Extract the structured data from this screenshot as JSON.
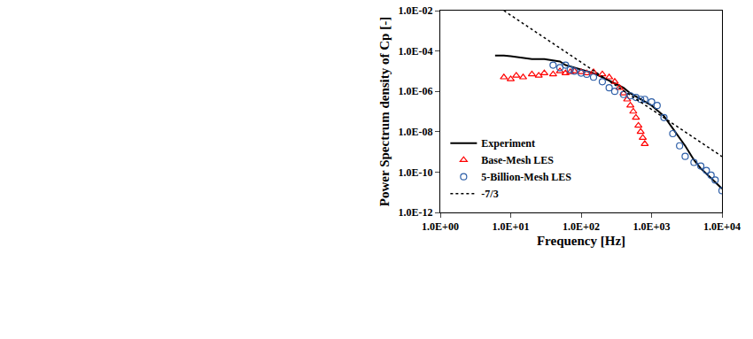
{
  "chart_data": {
    "type": "line",
    "x_label": "Frequency [Hz]",
    "y_label": "Power Spectrum density of Cp [-]",
    "log": true,
    "grid": false,
    "legend": "lower left",
    "xlim": [
      1,
      10000
    ],
    "ylim": [
      1e-12,
      0.01
    ],
    "xticks": [
      {
        "value": 1,
        "label": "1.0E+00"
      },
      {
        "value": 10,
        "label": "1.0E+01"
      },
      {
        "value": 100,
        "label": "1.0E+02"
      },
      {
        "value": 1000,
        "label": "1.0E+03"
      },
      {
        "value": 10000,
        "label": "1.0E+04"
      }
    ],
    "yticks": [
      {
        "value": 1e-12,
        "label": "1.0E-12"
      },
      {
        "value": 1e-10,
        "label": "1.0E-10"
      },
      {
        "value": 1e-08,
        "label": "1.0E-08"
      },
      {
        "value": 1e-06,
        "label": "1.0E-06"
      },
      {
        "value": 0.0001,
        "label": "1.0E-04"
      },
      {
        "value": 0.01,
        "label": "1.0E-02"
      }
    ],
    "series": [
      {
        "name": "Experiment",
        "type": "line",
        "color": "#000000",
        "line_style": "solid",
        "x": [
          6,
          8,
          10,
          15,
          20,
          30,
          40,
          50,
          60,
          80,
          100,
          150,
          200,
          300,
          400,
          500,
          700,
          1000,
          1500,
          2000,
          3000,
          4000,
          5000,
          7000,
          10000
        ],
        "values": [
          6e-05,
          6e-05,
          5.5e-05,
          4.5e-05,
          4e-05,
          4e-05,
          3.5e-05,
          3e-05,
          2e-05,
          1.5e-05,
          1.2e-05,
          8e-06,
          5e-06,
          2.5e-06,
          1.5e-06,
          8e-07,
          4e-07,
          2e-07,
          6e-08,
          1.5e-08,
          2e-09,
          4e-10,
          1.5e-10,
          5e-11,
          1.5e-11
        ]
      },
      {
        "name": "Base-Mesh LES",
        "type": "scatter",
        "color": "#ff0000",
        "marker": "triangle-open",
        "x": [
          8,
          10,
          12,
          15,
          20,
          25,
          30,
          40,
          50,
          60,
          70,
          80,
          100,
          120,
          150,
          200,
          250,
          300,
          350,
          400,
          450,
          500,
          550,
          600,
          650,
          700,
          750,
          800
        ],
        "values": [
          5e-06,
          4e-06,
          6e-06,
          5e-06,
          7e-06,
          6e-06,
          8e-06,
          7e-06,
          1e-05,
          8e-06,
          9e-06,
          1e-05,
          9e-06,
          8e-06,
          9e-06,
          7e-06,
          5e-06,
          3e-06,
          1.5e-06,
          8e-07,
          4e-07,
          2e-07,
          1e-07,
          5e-08,
          2e-08,
          1e-08,
          5e-09,
          2.5e-09
        ]
      },
      {
        "name": "5-Billion-Mesh LES",
        "type": "scatter",
        "color": "#2e5fa8",
        "marker": "circle-open",
        "x": [
          40,
          50,
          60,
          70,
          80,
          100,
          120,
          150,
          200,
          250,
          300,
          400,
          500,
          600,
          700,
          800,
          1000,
          1200,
          1500,
          2000,
          2500,
          3000,
          4000,
          5000,
          6000,
          7000,
          8000,
          10000
        ],
        "values": [
          2e-05,
          1.5e-05,
          2e-05,
          1.2e-05,
          1e-05,
          8e-06,
          7e-06,
          5e-06,
          3e-06,
          1.5e-06,
          1e-06,
          7e-07,
          6e-07,
          5e-07,
          4e-07,
          4e-07,
          3e-07,
          2e-07,
          5e-08,
          8e-09,
          2e-09,
          6e-10,
          3e-10,
          2e-10,
          1.2e-10,
          7e-11,
          4e-11,
          1.2e-11
        ]
      },
      {
        "name": "-7/3",
        "type": "line",
        "color": "#000000",
        "line_style": "dotted",
        "x": [
          8,
          10000
        ],
        "values": [
          0.01,
          5.9e-10
        ]
      }
    ]
  }
}
